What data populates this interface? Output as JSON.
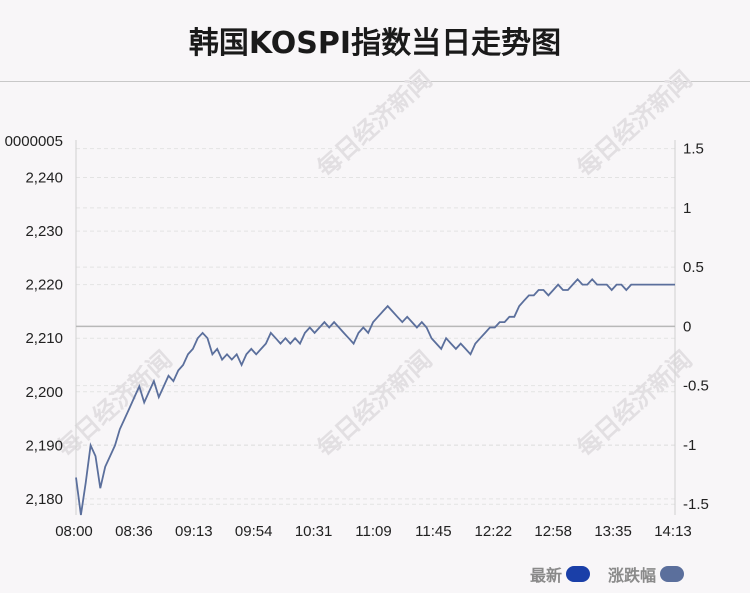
{
  "title": "韩国KOSPI指数当日走势图",
  "watermark": "每日经济新闻",
  "legend": [
    {
      "label": "最新",
      "color": "#1a3fa8"
    },
    {
      "label": "涨跌幅",
      "color": "#5b6f9c"
    }
  ],
  "chart_data": {
    "type": "line",
    "x_ticks": [
      "08:00",
      "08:36",
      "09:13",
      "09:54",
      "10:31",
      "11:09",
      "11:45",
      "12:22",
      "12:58",
      "13:35",
      "14:13"
    ],
    "y_left_ticks": [
      "2,180",
      "2,190",
      "2,200",
      "2,210",
      "2,220",
      "2,230",
      "2,240"
    ],
    "y_left_top_label": "0000005",
    "y_right_ticks": [
      "-1.5",
      "-1",
      "-0.5",
      "0",
      "0.5",
      "1",
      "1.5"
    ],
    "ylim_left": [
      2177,
      2247
    ],
    "baseline": 2212.2,
    "grid": true,
    "line_color": "#5b6f9c",
    "series": [
      {
        "x": [
          "08:00",
          "08:03",
          "08:06",
          "08:09",
          "08:12",
          "08:15",
          "08:18",
          "08:21",
          "08:24",
          "08:27",
          "08:30",
          "08:33",
          "08:36",
          "08:39",
          "08:42",
          "08:45",
          "08:48",
          "08:51",
          "08:54",
          "08:57",
          "09:00",
          "09:03",
          "09:06",
          "09:09",
          "09:13",
          "09:16",
          "09:19",
          "09:22",
          "09:25",
          "09:28",
          "09:31",
          "09:34",
          "09:37",
          "09:40",
          "09:43",
          "09:46",
          "09:49",
          "09:52",
          "09:54",
          "09:57",
          "10:00",
          "10:03",
          "10:06",
          "10:09",
          "10:12",
          "10:15",
          "10:18",
          "10:21",
          "10:24",
          "10:27",
          "10:31",
          "10:34",
          "10:37",
          "10:40",
          "10:43",
          "10:46",
          "10:49",
          "10:52",
          "10:55",
          "10:58",
          "11:01",
          "11:04",
          "11:09",
          "11:12",
          "11:15",
          "11:18",
          "11:21",
          "11:24",
          "11:27",
          "11:30",
          "11:33",
          "11:36",
          "11:39",
          "11:42",
          "11:45",
          "11:48",
          "11:51",
          "11:54",
          "11:57",
          "12:00",
          "12:03",
          "12:06",
          "12:09",
          "12:12",
          "12:15",
          "12:18",
          "12:22",
          "12:25",
          "12:28",
          "12:31",
          "12:34",
          "12:37",
          "12:40",
          "12:43",
          "12:46",
          "12:49",
          "12:52",
          "12:55",
          "12:58",
          "13:01",
          "13:04",
          "13:07",
          "13:10",
          "13:13",
          "13:16",
          "13:19",
          "13:22",
          "13:25",
          "13:28",
          "13:31",
          "13:35",
          "13:38",
          "13:41",
          "13:44",
          "13:47",
          "13:50",
          "13:53",
          "13:56",
          "13:59",
          "14:02",
          "14:05",
          "14:08",
          "14:11",
          "14:13"
        ],
        "values": [
          2184,
          2177,
          2183,
          2190,
          2188,
          2182,
          2186,
          2188,
          2190,
          2193,
          2195,
          2197,
          2199,
          2201,
          2198,
          2200,
          2202,
          2199,
          2201,
          2203,
          2202,
          2204,
          2205,
          2207,
          2208,
          2210,
          2211,
          2210,
          2207,
          2208,
          2206,
          2207,
          2206,
          2207,
          2205,
          2207,
          2208,
          2207,
          2208,
          2209,
          2211,
          2210,
          2209,
          2210,
          2209,
          2210,
          2209,
          2211,
          2212,
          2211,
          2212,
          2213,
          2212,
          2213,
          2212,
          2211,
          2210,
          2209,
          2211,
          2212,
          2211,
          2213,
          2214,
          2215,
          2216,
          2215,
          2214,
          2213,
          2214,
          2213,
          2212,
          2213,
          2212,
          2210,
          2209,
          2208,
          2210,
          2209,
          2208,
          2209,
          2208,
          2207,
          2209,
          2210,
          2211,
          2212,
          2212,
          2213,
          2213,
          2214,
          2214,
          2216,
          2217,
          2218,
          2218,
          2219,
          2219,
          2218,
          2219,
          2220,
          2219,
          2219,
          2220,
          2221,
          2220,
          2220,
          2221,
          2220,
          2220,
          2220,
          2219,
          2220,
          2220,
          2219,
          2220,
          2220,
          2220,
          2220,
          2220,
          2220,
          2220,
          2220,
          2220,
          2220
        ]
      }
    ]
  }
}
